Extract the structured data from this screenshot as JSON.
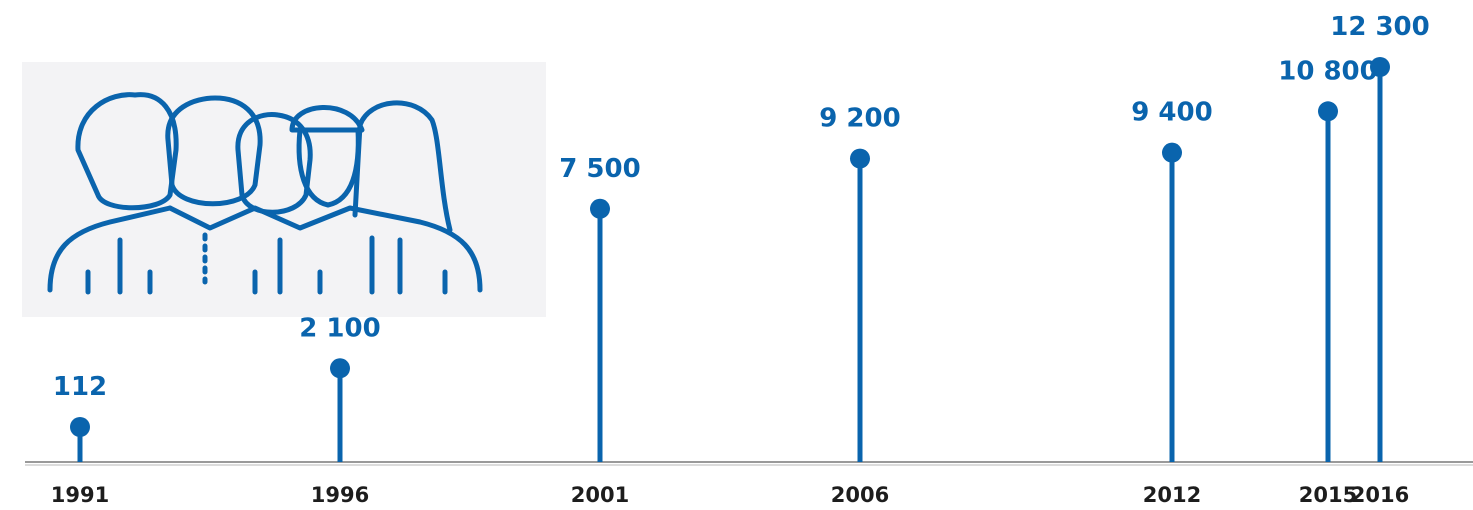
{
  "colors": {
    "accent": "#0a64ad",
    "year_text": "#1d1d1d",
    "baseline": "#9a9a9a",
    "icon_background": "#f3f3f5"
  },
  "illustration": {
    "icon": "team-of-people-icon"
  },
  "chart_data": {
    "type": "lollipop",
    "categories": [
      "1991",
      "1996",
      "2001",
      "2006",
      "2012",
      "2015",
      "2016"
    ],
    "values": [
      112,
      2100,
      7500,
      9200,
      9400,
      10800,
      12300
    ],
    "value_labels": [
      "112",
      "2 100",
      "7 500",
      "9 200",
      "9 400",
      "10 800",
      "12 300"
    ],
    "title": "",
    "xlabel": "",
    "ylabel": "",
    "x_axis": "time",
    "grid": false,
    "legend": "none"
  }
}
